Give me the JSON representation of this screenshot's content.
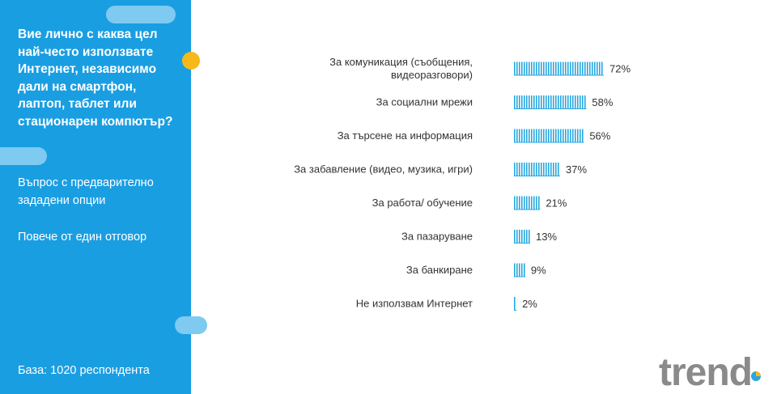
{
  "sidebar": {
    "question": "Вие лично с каква цел най-често използвате Интернет, независимо дали на смартфон, лаптоп, таблет или стационарен компютър?",
    "note_1": "Въпрос с предварително зададени опции",
    "note_2": "Повече от един отговор",
    "base": "База:  1020 респондента"
  },
  "logo": {
    "text": "trend"
  },
  "colors": {
    "sidebar": "#1a9ee2",
    "bar": "#29a8e0",
    "accent_dot": "#f7b81a",
    "logo_gray": "#8a8a8a"
  },
  "chart_data": {
    "type": "bar",
    "orientation": "horizontal",
    "categories": [
      [
        "За комуникация (съобщения,",
        "видеоразговори)"
      ],
      [
        "За социални мрежи"
      ],
      [
        "За търсене на информация"
      ],
      [
        "За забавление (видео, музика, игри)"
      ],
      [
        "За работа/ обучение"
      ],
      [
        "За пазаруване"
      ],
      [
        "За банкиране"
      ],
      [
        "Не използвам Интернет"
      ]
    ],
    "values": [
      72,
      58,
      56,
      37,
      21,
      13,
      9,
      2
    ],
    "value_labels": [
      "72%",
      "58%",
      "56%",
      "37%",
      "21%",
      "13%",
      "9%",
      "2%"
    ],
    "xlim": [
      0,
      100
    ],
    "unit": "%"
  }
}
